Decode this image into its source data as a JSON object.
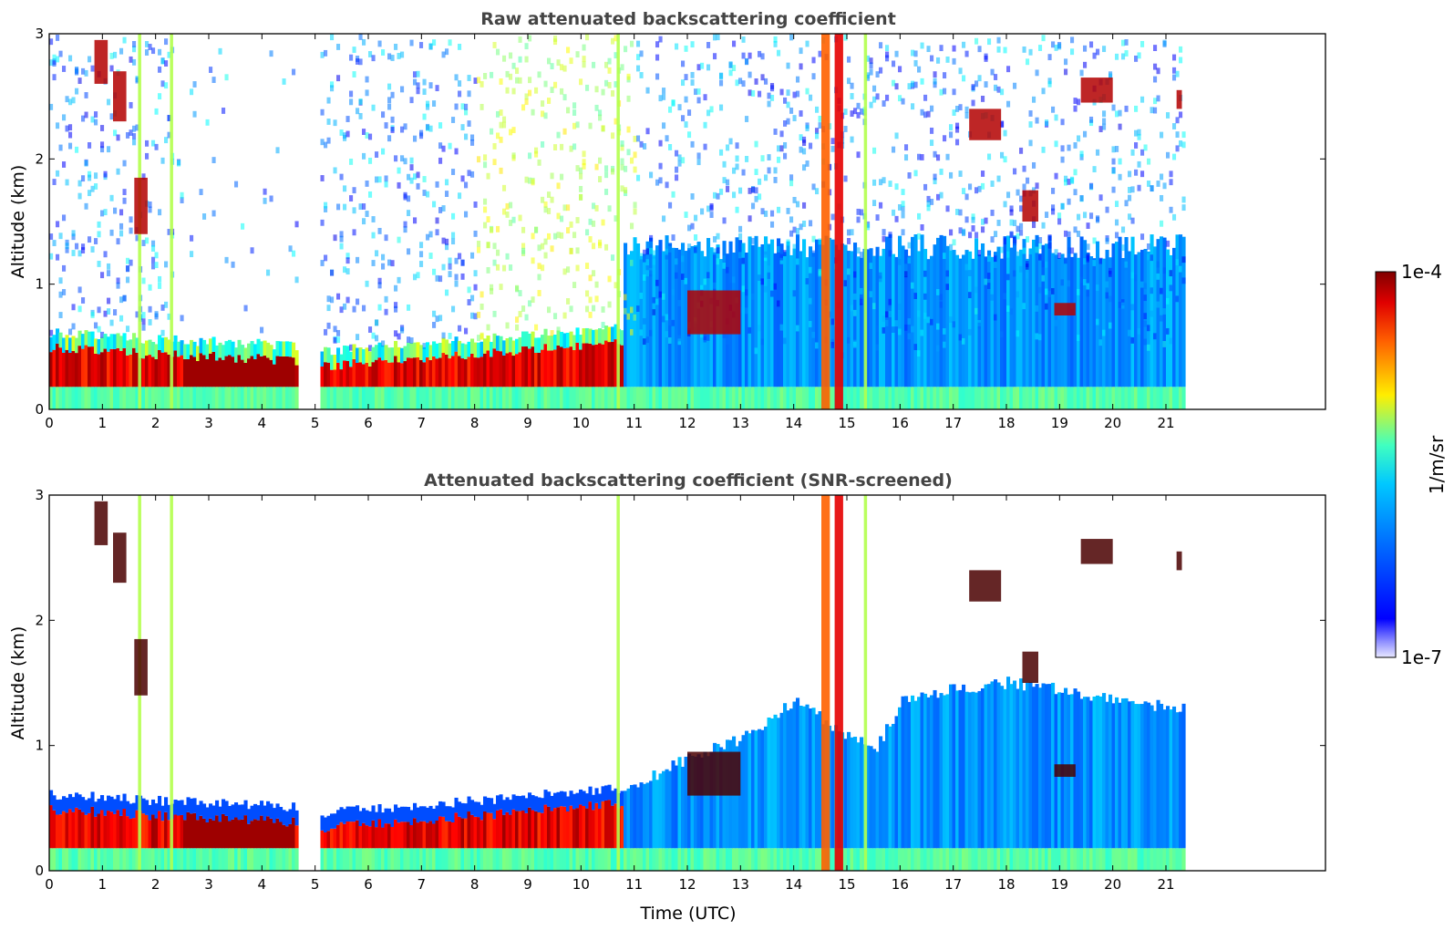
{
  "chart_data": [
    {
      "type": "heatmap",
      "title": "Raw attenuated backscattering coefficient",
      "xlabel": "",
      "ylabel": "Altitude (km)",
      "xlim": [
        0,
        24
      ],
      "ylim": [
        0,
        3
      ],
      "x_ticks": [
        "0",
        "1",
        "2",
        "3",
        "4",
        "5",
        "6",
        "7",
        "8",
        "9",
        "10",
        "11",
        "12",
        "13",
        "14",
        "15",
        "16",
        "17",
        "18",
        "19",
        "20",
        "21"
      ],
      "y_ticks": [
        "0",
        "1",
        "2",
        "3"
      ],
      "data_end_time": 21.3,
      "gaps": [
        [
          4.65,
          5.05
        ]
      ],
      "boundary_layer_top_km": [
        [
          0,
          0.45
        ],
        [
          2,
          0.4
        ],
        [
          4.6,
          0.35
        ],
        [
          5,
          0.3
        ],
        [
          8,
          0.4
        ],
        [
          10.7,
          0.5
        ]
      ],
      "cloud_columns_utc": [
        1.7,
        2.3,
        10.7,
        14.6,
        14.85,
        15.35
      ],
      "clouds": [
        {
          "t0": 0.85,
          "t1": 1.1,
          "z0": 2.6,
          "z1": 2.95
        },
        {
          "t0": 1.2,
          "t1": 1.45,
          "z0": 2.3,
          "z1": 2.7
        },
        {
          "t0": 1.6,
          "t1": 1.85,
          "z0": 1.4,
          "z1": 1.85
        },
        {
          "t0": 12.0,
          "t1": 13.0,
          "z0": 0.6,
          "z1": 0.95
        },
        {
          "t0": 17.3,
          "t1": 17.9,
          "z0": 2.15,
          "z1": 2.4
        },
        {
          "t0": 18.3,
          "t1": 18.6,
          "z0": 1.5,
          "z1": 1.75
        },
        {
          "t0": 18.9,
          "t1": 19.3,
          "z0": 0.75,
          "z1": 0.85
        },
        {
          "t0": 19.4,
          "t1": 20.0,
          "z0": 2.45,
          "z1": 2.65
        },
        {
          "t0": 21.2,
          "t1": 21.3,
          "z0": 2.4,
          "z1": 2.55
        }
      ]
    },
    {
      "type": "heatmap",
      "title": "Attenuated backscattering coefficient (SNR-screened)",
      "xlabel": "Time (UTC)",
      "ylabel": "Altitude (km)",
      "xlim": [
        0,
        24
      ],
      "ylim": [
        0,
        3
      ],
      "x_ticks": [
        "0",
        "1",
        "2",
        "3",
        "4",
        "5",
        "6",
        "7",
        "8",
        "9",
        "10",
        "11",
        "12",
        "13",
        "14",
        "15",
        "16",
        "17",
        "18",
        "19",
        "20",
        "21"
      ],
      "y_ticks": [
        "0",
        "1",
        "2",
        "3"
      ],
      "data_end_time": 21.3,
      "gaps": [
        [
          4.65,
          5.05
        ]
      ],
      "screened": true,
      "blue_region_top_km": [
        [
          10.8,
          0.6
        ],
        [
          12,
          0.85
        ],
        [
          13,
          1.0
        ],
        [
          14,
          1.3
        ],
        [
          15.5,
          0.9
        ],
        [
          16,
          1.3
        ],
        [
          17,
          1.4
        ],
        [
          18,
          1.45
        ],
        [
          19,
          1.4
        ],
        [
          20,
          1.3
        ],
        [
          21.3,
          1.25
        ]
      ]
    }
  ],
  "colorbar": {
    "label": "1/m/sr",
    "max_label": "1e-4",
    "min_label": "1e-7",
    "colormap": "jet",
    "scale": "log"
  },
  "colors": {
    "low": "#0000ff",
    "mid": "#00c8ff",
    "high": "#ffdd00",
    "peak": "#8b0000",
    "background": "#ffffff"
  }
}
